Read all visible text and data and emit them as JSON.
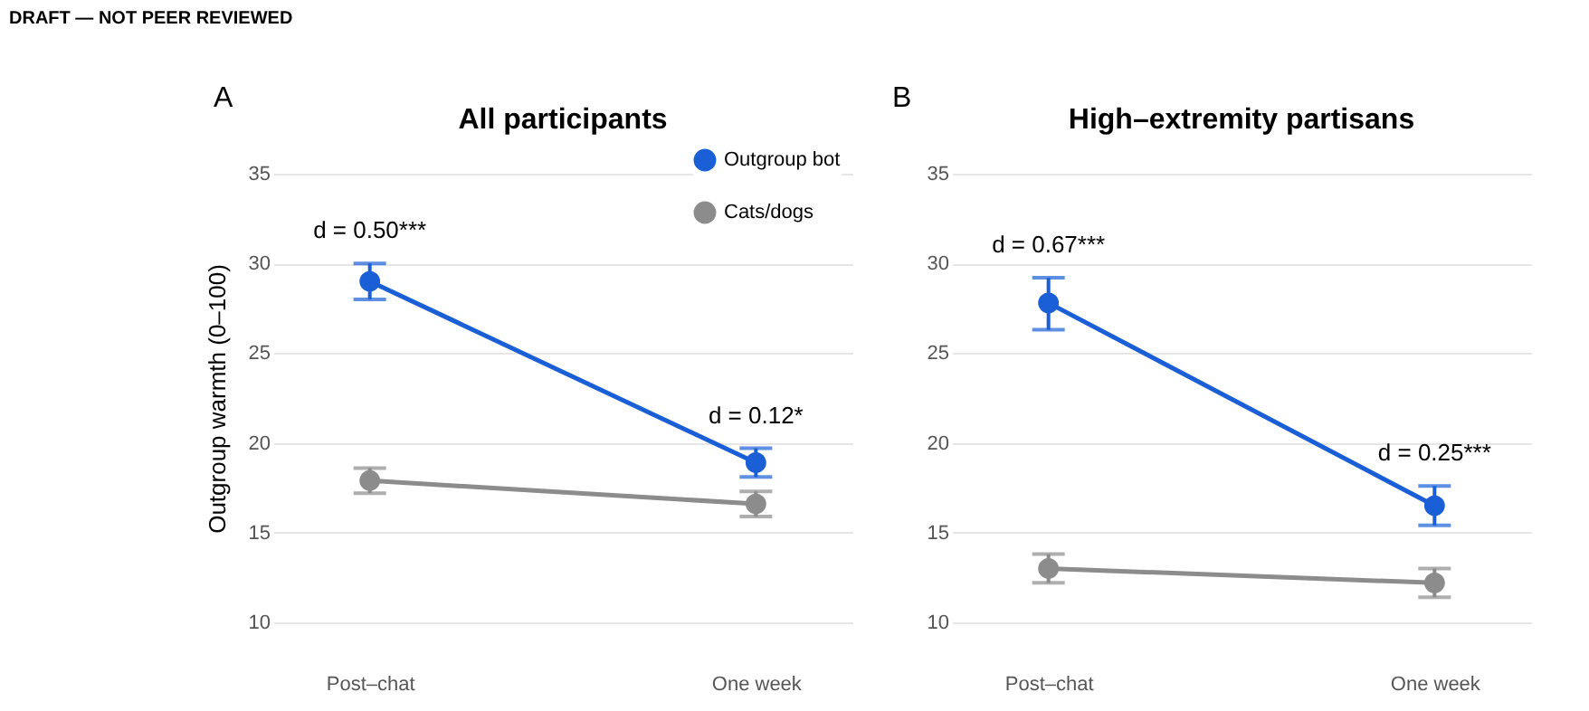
{
  "chart_data": [
    {
      "type": "line",
      "title": "All participants",
      "ylabel": "Outgroup warmth (0–100)",
      "categories": [
        "Post–chat",
        "One week"
      ],
      "ylim": [
        10,
        35
      ],
      "yticks": [
        10,
        15,
        20,
        25,
        30,
        35
      ],
      "grid": "y",
      "legend": "top right",
      "marker": "circle",
      "line_style": "solid",
      "series": [
        {
          "name": "Outgroup bot",
          "color": "#1a5fd6",
          "values": [
            29.0,
            18.9
          ],
          "errors": [
            [
              28.0,
              30.0
            ],
            [
              18.1,
              19.7
            ]
          ]
        },
        {
          "name": "Cats/dogs",
          "color": "#8c8c8c",
          "values": [
            17.9,
            16.6
          ],
          "errors": [
            [
              17.2,
              18.6
            ],
            [
              15.9,
              17.3
            ]
          ]
        }
      ],
      "annotations": [
        "DRAFT — NOT PEER REVIEWED",
        "A",
        "d = 0.50***",
        "d = 0.12*"
      ]
    },
    {
      "type": "line",
      "title": "High–extremity partisans",
      "categories": [
        "Post–chat",
        "One week"
      ],
      "ylim": [
        10,
        35
      ],
      "yticks": [
        10,
        15,
        20,
        25,
        30,
        35
      ],
      "grid": "y",
      "legend": false,
      "marker": "circle",
      "line_style": "solid",
      "series": [
        {
          "color": "#1a5fd6",
          "values": [
            27.8,
            16.5
          ],
          "errors": [
            [
              26.3,
              29.2
            ],
            [
              15.4,
              17.6
            ]
          ]
        },
        {
          "color": "#8c8c8c",
          "values": [
            13.0,
            12.2
          ],
          "errors": [
            [
              12.2,
              13.8
            ],
            [
              11.4,
              13.0
            ]
          ]
        }
      ],
      "annotations": [
        "B",
        "d = 0.67***",
        "d = 0.25***"
      ]
    }
  ]
}
